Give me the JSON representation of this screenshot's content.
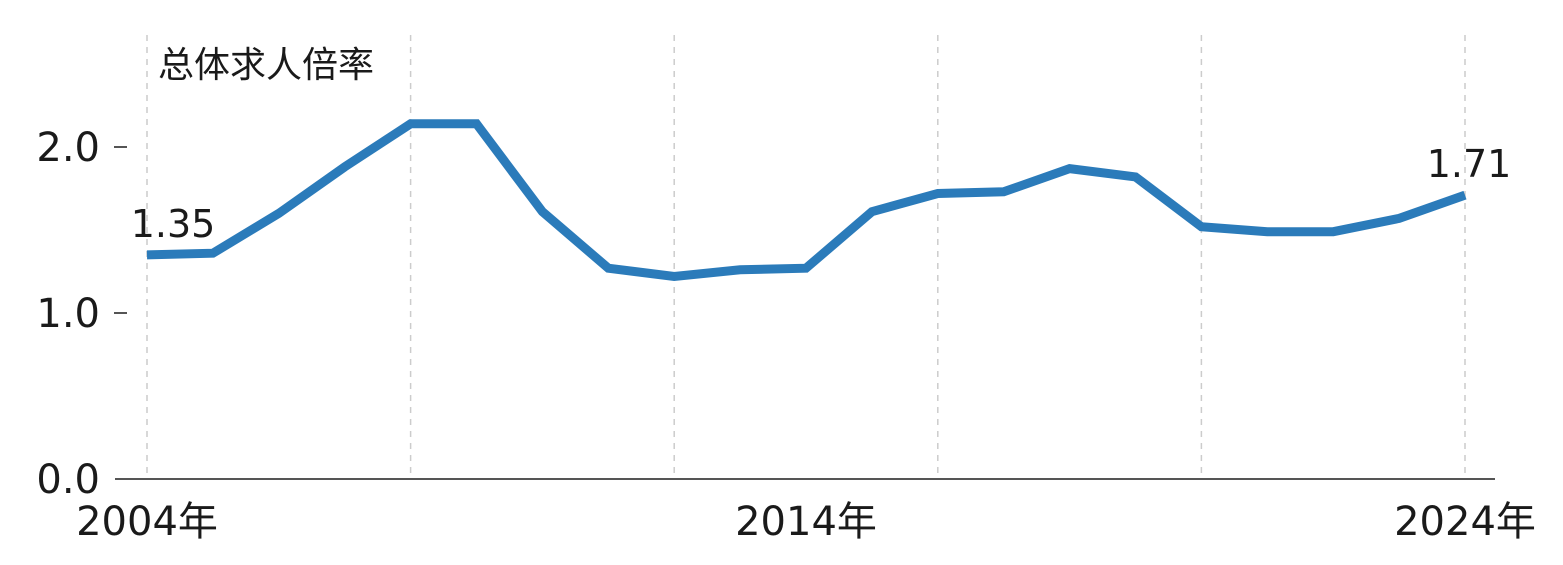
{
  "chart_data": {
    "type": "line",
    "ylabel": "总体求人倍率",
    "xlabel": "",
    "x": [
      2004,
      2005,
      2006,
      2007,
      2008,
      2009,
      2010,
      2011,
      2012,
      2013,
      2014,
      2015,
      2016,
      2017,
      2018,
      2019,
      2020,
      2021,
      2022,
      2023,
      2024
    ],
    "series": [
      {
        "values": [
          1.35,
          1.36,
          1.6,
          1.88,
          2.14,
          2.14,
          1.61,
          1.27,
          1.22,
          1.26,
          1.27,
          1.61,
          1.72,
          1.73,
          1.87,
          1.82,
          1.52,
          1.49,
          1.49,
          1.57,
          1.71
        ],
        "color": "#2b7bba"
      }
    ],
    "xlim": [
      2004,
      2024
    ],
    "ylim": [
      0,
      2.5
    ],
    "yticks": [
      0.0,
      1.0,
      2.0
    ],
    "ytick_labels": [
      "0.0",
      "1.0",
      "2.0"
    ],
    "xticks": [
      2004,
      2014,
      2024
    ],
    "xtick_labels": [
      "2004年",
      "2014年",
      "2024年"
    ],
    "x_gridlines": [
      2004,
      2008,
      2012,
      2016,
      2020,
      2024
    ],
    "grid": "vertical dashed",
    "annotations": [
      {
        "x": 2004,
        "y": 1.35,
        "text": "1.35"
      },
      {
        "x": 2024,
        "y": 1.71,
        "text": "1.71"
      }
    ],
    "colors": {
      "line": "#2b7bba",
      "grid": "#cccccc",
      "axis": "#555555",
      "text": "#1a1a1a"
    }
  }
}
